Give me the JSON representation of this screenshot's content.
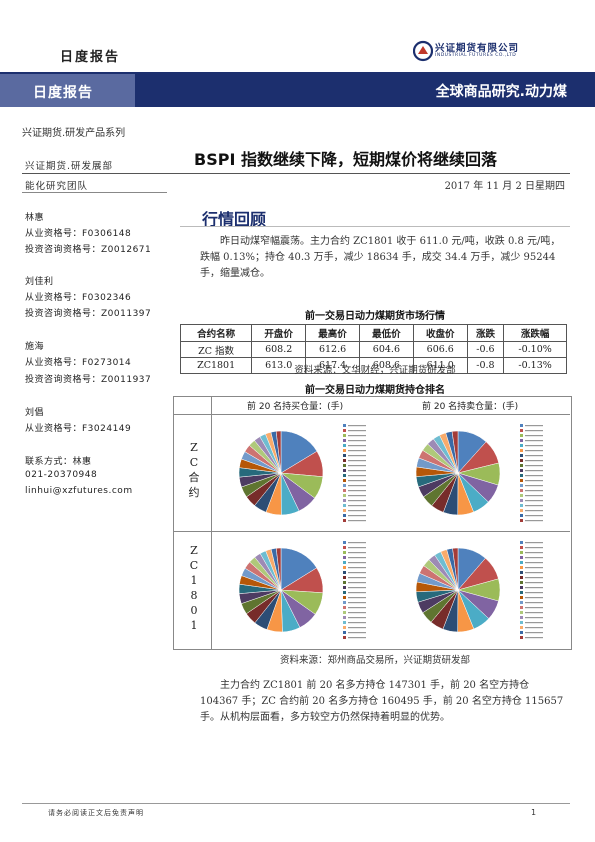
{
  "header": {
    "top_label": "日度报告",
    "logo_name": "兴证期货有限公司",
    "logo_sub": "INDUSTRIAL FUTURES CO.,LTD",
    "banner_left": "日度报告",
    "banner_right": "全球商品研究.动力煤",
    "series": "兴证期货.研发产品系列"
  },
  "title": "BSPI 指数继续下降，短期煤价将继续回落",
  "date": "2017 年 11 月 2 日星期四",
  "sidebar": {
    "dept": "兴证期货.研发展部",
    "team": "能化研究团队",
    "analysts": [
      {
        "name": "林惠",
        "line1": "从业资格号：F0306148",
        "line2": "投资咨询资格号：Z0012671"
      },
      {
        "name": "刘佳利",
        "line1": "从业资格号：F0302346",
        "line2": "投资咨询资格号：Z0011397"
      },
      {
        "name": "施海",
        "line1": "从业资格号：F0273014",
        "line2": "投资咨询资格号：Z0011937"
      },
      {
        "name": "刘倡",
        "line1": "从业资格号：F3024149",
        "line2": ""
      }
    ],
    "contact_label": "联系方式：林惠",
    "phone": "021-20370948",
    "email": "linhui@xzfutures.com"
  },
  "section": {
    "title": "行情回顾",
    "para1": "昨日动煤窄幅震荡。主力合约 ZC1801 收于 611.0 元/吨，收跌 0.8 元/吨，跌幅 0.13%；持仓 40.3 万手，减少 18634 手，成交 34.4 万手，减少 95244 手，缩量减仓。",
    "table_title": "前一交易日动力煤期货市场行情",
    "table_headers": [
      "合约名称",
      "开盘价",
      "最高价",
      "最低价",
      "收盘价",
      "涨跌",
      "涨跌幅"
    ],
    "table_rows": [
      [
        "ZC 指数",
        "608.2",
        "612.6",
        "604.6",
        "606.6",
        "-0.6",
        "-0.10%"
      ],
      [
        "ZC1801",
        "613.0",
        "617.4",
        "608.6",
        "611.0",
        "-0.8",
        "-0.13%"
      ]
    ],
    "source1": "资料来源：文华财经，兴证期货研发部",
    "pie_title": "前一交易日动力煤期货持仓排名",
    "pie_col1": "前 20 名持买仓量：(手)",
    "pie_col2": "前 20 名持卖仓量：(手)",
    "row1_label": [
      "Z",
      "C",
      "合",
      "约"
    ],
    "row2_label": [
      "Z",
      "C",
      "1",
      "8",
      "0",
      "1"
    ],
    "source2": "资料来源：郑州商品交易所，兴证期货研发部",
    "para2": "主力合约 ZC1801 前 20 名多方持仓 147301 手，前 20 名空方持仓 104367 手；ZC 合约前 20 名多方持仓 160495 手，前 20 名空方持仓 115657 手。从机构层面看，多方较空方仍然保持着明显的优势。"
  },
  "footer": {
    "note": "请务必阅读正文后免责声明",
    "page": "1"
  },
  "pie_colors": [
    "#4f81bd",
    "#c0504d",
    "#9bbb59",
    "#8064a2",
    "#4bacc6",
    "#f79646",
    "#2c4d75",
    "#772c2a",
    "#5f7530",
    "#4d3b62",
    "#276a7c",
    "#b65708",
    "#729aca",
    "#cd7371",
    "#afc97a",
    "#9d8ab5",
    "#6fbdd1",
    "#f9ab6b",
    "#3a6aa6",
    "#a33c39"
  ],
  "pie_values": {
    "zc_buy": [
      19.5,
      12.0,
      10.5,
      9.2,
      8.3,
      7.1,
      6.0,
      5.4,
      5.0,
      4.6,
      4.3,
      4.0,
      3.7,
      3.5,
      3.2,
      3.0,
      2.8,
      2.6,
      2.4,
      2.2
    ],
    "zc_sell": [
      12.9,
      10.5,
      9.4,
      8.3,
      7.5,
      6.8,
      6.2,
      5.6,
      5.1,
      4.7,
      4.4,
      4.1,
      3.9,
      3.6,
      3.4,
      3.2,
      3.0,
      2.8,
      2.7,
      2.5
    ],
    "zc1801_buy": [
      18.8,
      11.5,
      10.2,
      9.0,
      8.0,
      7.0,
      6.1,
      5.5,
      5.0,
      4.5,
      4.2,
      3.9,
      3.6,
      3.4,
      3.1,
      2.9,
      2.7,
      2.5,
      2.3,
      2.1
    ],
    "zc1801_sell": [
      12.1,
      10.0,
      9.1,
      8.2,
      7.4,
      6.7,
      6.1,
      5.6,
      5.1,
      4.7,
      4.3,
      4.0,
      3.7,
      3.5,
      3.2,
      3.0,
      2.8,
      2.6,
      2.4,
      2.2
    ]
  }
}
